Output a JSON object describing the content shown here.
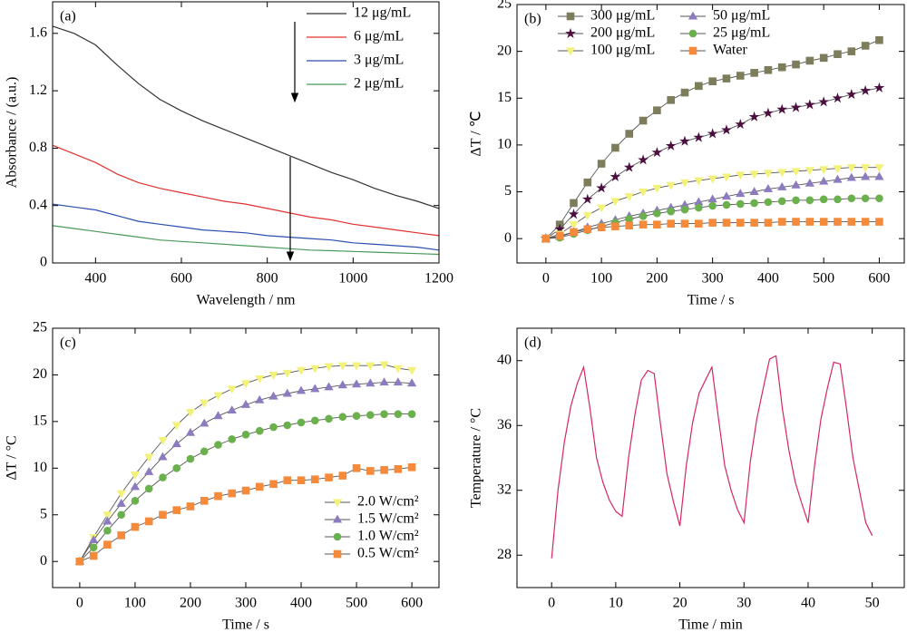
{
  "chart_data": [
    {
      "type": "line",
      "panel_label": "(a)",
      "xlabel": "Wavelength / nm",
      "ylabel": "Absorbance / (a.u.)",
      "x": [
        300,
        350,
        400,
        450,
        500,
        550,
        600,
        650,
        700,
        750,
        800,
        850,
        900,
        950,
        1000,
        1050,
        1100,
        1150,
        1200
      ],
      "series": [
        {
          "name": "12 μg/mL",
          "color": "#333333",
          "values": [
            1.65,
            1.6,
            1.52,
            1.38,
            1.25,
            1.14,
            1.06,
            0.99,
            0.93,
            0.87,
            0.81,
            0.75,
            0.69,
            0.63,
            0.58,
            0.52,
            0.47,
            0.43,
            0.38
          ]
        },
        {
          "name": "6 μg/mL",
          "color": "#e03030",
          "values": [
            0.82,
            0.76,
            0.7,
            0.62,
            0.56,
            0.52,
            0.49,
            0.46,
            0.43,
            0.41,
            0.38,
            0.35,
            0.32,
            0.3,
            0.27,
            0.25,
            0.23,
            0.21,
            0.19
          ]
        },
        {
          "name": "3 μg/mL",
          "color": "#2a4fb0",
          "values": [
            0.41,
            0.39,
            0.37,
            0.33,
            0.29,
            0.27,
            0.25,
            0.23,
            0.22,
            0.21,
            0.19,
            0.18,
            0.17,
            0.16,
            0.14,
            0.13,
            0.12,
            0.11,
            0.09
          ]
        },
        {
          "name": "2 μg/mL",
          "color": "#4a9a5a",
          "values": [
            0.26,
            0.24,
            0.22,
            0.2,
            0.18,
            0.16,
            0.15,
            0.14,
            0.13,
            0.12,
            0.11,
            0.1,
            0.09,
            0.085,
            0.08,
            0.075,
            0.07,
            0.065,
            0.06
          ]
        }
      ],
      "xlim": [
        300,
        1200
      ],
      "xticks": [
        400,
        600,
        800,
        1000,
        1200
      ],
      "ylim": [
        0,
        1.82
      ],
      "yticks": [
        0,
        0.4,
        0.8,
        1.2,
        1.6
      ],
      "legend": "upper right"
    },
    {
      "type": "line",
      "panel_label": "(b)",
      "xlabel": "Time / s",
      "ylabel": "ΔT / ℃",
      "x": [
        0,
        25,
        50,
        75,
        100,
        125,
        150,
        175,
        200,
        225,
        250,
        275,
        300,
        325,
        350,
        375,
        400,
        425,
        450,
        475,
        500,
        525,
        550,
        575,
        600
      ],
      "series": [
        {
          "name": "300 μg/mL",
          "color": "#7d7d5c",
          "marker": "square",
          "values": [
            0,
            1.5,
            3.8,
            6,
            8,
            9.7,
            11.2,
            12.6,
            13.7,
            14.8,
            15.6,
            16.3,
            16.8,
            17.1,
            17.4,
            17.7,
            18.0,
            18.3,
            18.6,
            19.0,
            19.3,
            19.7,
            20.0,
            20.6,
            21.2
          ]
        },
        {
          "name": "200 μg/mL",
          "color": "#4b0f3f",
          "marker": "star",
          "values": [
            0,
            1.0,
            2.6,
            4.2,
            5.4,
            6.6,
            7.6,
            8.4,
            9.2,
            9.9,
            10.4,
            10.8,
            11.2,
            11.6,
            12.2,
            13.0,
            13.4,
            13.8,
            14.0,
            14.3,
            14.6,
            15.0,
            15.4,
            15.8,
            16.1
          ]
        },
        {
          "name": "100 μg/mL",
          "color": "#f2f27a",
          "marker": "triangle-down",
          "values": [
            0,
            0.5,
            1.5,
            2.5,
            3.3,
            4.0,
            4.5,
            5.0,
            5.4,
            5.7,
            6.0,
            6.2,
            6.4,
            6.6,
            6.8,
            6.9,
            7.0,
            7.1,
            7.2,
            7.3,
            7.4,
            7.5,
            7.6,
            7.6,
            7.6
          ]
        },
        {
          "name": "50 μg/mL",
          "color": "#8d7bbf",
          "marker": "triangle-up",
          "values": [
            0,
            0.2,
            0.7,
            1.2,
            1.6,
            2.0,
            2.4,
            2.7,
            3.0,
            3.3,
            3.6,
            3.9,
            4.2,
            4.5,
            4.8,
            5.0,
            5.3,
            5.5,
            5.7,
            5.9,
            6.1,
            6.3,
            6.5,
            6.6,
            6.6
          ]
        },
        {
          "name": "25 μg/mL",
          "color": "#6ab04c",
          "marker": "circle",
          "values": [
            0,
            0.1,
            0.5,
            0.9,
            1.3,
            1.7,
            2.1,
            2.4,
            2.7,
            2.9,
            3.1,
            3.3,
            3.5,
            3.6,
            3.7,
            3.8,
            3.9,
            4.0,
            4.1,
            4.1,
            4.2,
            4.2,
            4.3,
            4.3,
            4.3
          ]
        },
        {
          "name": "Water",
          "color": "#f58a3a",
          "marker": "square",
          "values": [
            0,
            0.3,
            0.7,
            1.0,
            1.2,
            1.3,
            1.4,
            1.5,
            1.5,
            1.6,
            1.6,
            1.6,
            1.7,
            1.7,
            1.7,
            1.7,
            1.7,
            1.8,
            1.8,
            1.8,
            1.8,
            1.8,
            1.8,
            1.8,
            1.8
          ]
        }
      ],
      "xlim": [
        -52,
        645
      ],
      "xticks": [
        0,
        100,
        200,
        300,
        400,
        500,
        600
      ],
      "ylim": [
        -2.6,
        25
      ],
      "yticks": [
        0,
        5,
        10,
        15,
        20,
        25
      ],
      "legend": "upper left",
      "legend_columns": 2
    },
    {
      "type": "line",
      "panel_label": "(c)",
      "xlabel": "Time / s",
      "ylabel": "ΔT / °C",
      "x": [
        0,
        25,
        50,
        75,
        100,
        125,
        150,
        175,
        200,
        225,
        250,
        275,
        300,
        325,
        350,
        375,
        400,
        425,
        450,
        475,
        500,
        525,
        550,
        575,
        600
      ],
      "series": [
        {
          "name": "2.0 W/cm²",
          "color": "#f2f27a",
          "marker": "triangle-down",
          "values": [
            0,
            2.6,
            5,
            7.3,
            9.3,
            11.2,
            13,
            14.6,
            16,
            17,
            17.8,
            18.5,
            19.1,
            19.6,
            20,
            20.2,
            20.5,
            20.7,
            20.9,
            21,
            21,
            21,
            21.1,
            20.7,
            20.5
          ]
        },
        {
          "name": "1.5 W/cm²",
          "color": "#8d7bbf",
          "marker": "triangle-up",
          "values": [
            0,
            2.3,
            4.3,
            6.2,
            8,
            9.6,
            11.2,
            12.6,
            13.8,
            14.8,
            15.6,
            16.2,
            16.8,
            17.3,
            17.7,
            18,
            18.3,
            18.5,
            18.7,
            18.9,
            19,
            19.1,
            19.2,
            19.2,
            19.1
          ]
        },
        {
          "name": "1.0 W/cm²",
          "color": "#6ab04c",
          "marker": "circle",
          "values": [
            0,
            1.5,
            3.3,
            5,
            6.5,
            7.8,
            9,
            10,
            11,
            11.8,
            12.5,
            13.1,
            13.6,
            14,
            14.4,
            14.6,
            14.9,
            15.1,
            15.3,
            15.5,
            15.6,
            15.7,
            15.8,
            15.8,
            15.8
          ]
        },
        {
          "name": "0.5 W/cm²",
          "color": "#f58a3a",
          "marker": "square",
          "values": [
            0,
            0.6,
            1.8,
            2.8,
            3.7,
            4.3,
            5,
            5.5,
            5.9,
            6.5,
            7,
            7.3,
            7.6,
            8,
            8.3,
            8.7,
            8.7,
            8.8,
            9,
            9.2,
            10,
            9.7,
            9.8,
            9.9,
            10.1
          ]
        }
      ],
      "xlim": [
        -49,
        649
      ],
      "xticks": [
        0,
        100,
        200,
        300,
        400,
        500,
        600
      ],
      "ylim": [
        -2.8,
        25
      ],
      "yticks": [
        0,
        5,
        10,
        15,
        20,
        25
      ],
      "legend": "lower right"
    },
    {
      "type": "line",
      "panel_label": "(d)",
      "xlabel": "Time / min",
      "ylabel": "Temperature / °C",
      "x": [
        0,
        1,
        2,
        3,
        4,
        5,
        6,
        7,
        8,
        9,
        10,
        11,
        12,
        13,
        14,
        15,
        16,
        17,
        18,
        19,
        20,
        21,
        22,
        23,
        24,
        25,
        26,
        27,
        28,
        29,
        30,
        31,
        32,
        33,
        34,
        35,
        36,
        37,
        38,
        39,
        40,
        41,
        42,
        43,
        44,
        45,
        46,
        47,
        48,
        49,
        50
      ],
      "series": [
        {
          "color": "#d6285e",
          "values": [
            27.8,
            32,
            35,
            37.2,
            38.6,
            39.6,
            37,
            34,
            32.5,
            31.4,
            30.7,
            30.4,
            34,
            36.7,
            38.8,
            39.4,
            39.2,
            36,
            33,
            31.3,
            29.8,
            33.5,
            36.2,
            38,
            38.8,
            39.6,
            36.5,
            33.5,
            32,
            30.8,
            30.0,
            33.8,
            36.4,
            38.3,
            40.1,
            40.3,
            37,
            34.5,
            32.5,
            31.2,
            30.0,
            33.5,
            36.4,
            38.3,
            39.9,
            39.8,
            37,
            34,
            32,
            30,
            29.2
          ]
        }
      ],
      "xlim": [
        -5.4,
        55
      ],
      "xticks": [
        0,
        10,
        20,
        30,
        40,
        50
      ],
      "ylim": [
        26,
        42
      ],
      "yticks": [
        28,
        32,
        36,
        40
      ]
    }
  ]
}
